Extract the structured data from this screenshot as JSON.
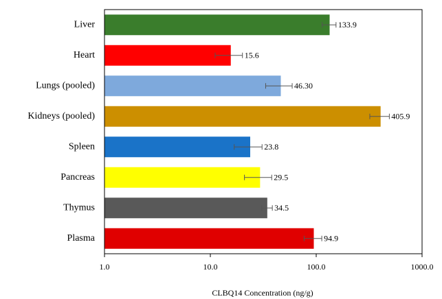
{
  "chart_data": {
    "type": "bar",
    "orientation": "horizontal",
    "x_label": "CLBQ14 Concentration (ng/g)",
    "categories": [
      "Liver",
      "Heart",
      "Lungs (pooled)",
      "Kidneys (pooled)",
      "Spleen",
      "Pancreas",
      "Thymus",
      "Plasma"
    ],
    "values": [
      133.9,
      15.6,
      46.3,
      405.9,
      23.8,
      29.5,
      34.5,
      94.9
    ],
    "value_labels": [
      "133.9",
      "15.6",
      "46.30",
      "405.9",
      "23.8",
      "29.5",
      "34.5",
      "94.9"
    ],
    "errors": [
      20,
      4.5,
      13,
      85,
      7,
      8.5,
      4,
      18
    ],
    "colors": [
      "#3a7d2c",
      "#ff0000",
      "#7ea9dc",
      "#cc8f00",
      "#1a73c8",
      "#ffff00",
      "#595959",
      "#e00000"
    ],
    "xscale": "log",
    "xlim": [
      1,
      1000
    ],
    "xticks": [
      {
        "value": 1,
        "label": "1.0"
      },
      {
        "value": 10,
        "label": "10.0"
      },
      {
        "value": 100,
        "label": "100.0"
      },
      {
        "value": 1000,
        "label": "1000.0"
      }
    ]
  }
}
